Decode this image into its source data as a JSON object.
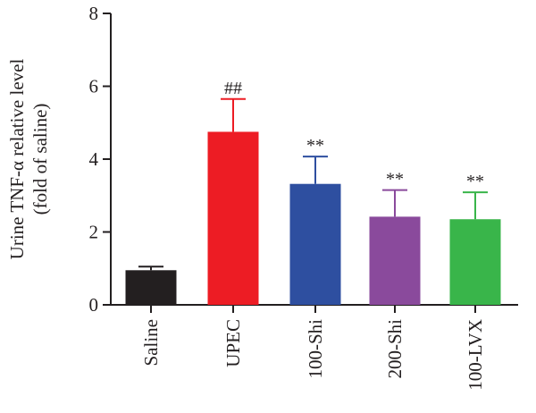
{
  "chart_data": {
    "type": "bar",
    "ylabel_line1": "Urine TNF-α relative level",
    "ylabel_line2": "(fold of saline)",
    "ylim": [
      0,
      8
    ],
    "yticks": [
      "0",
      "2",
      "4",
      "6",
      "8"
    ],
    "grid": false,
    "categories": [
      "Saline",
      "UPEC",
      "100-Shi",
      "200-Shi",
      "100-LVX"
    ],
    "values": [
      0.95,
      4.75,
      3.32,
      2.42,
      2.35
    ],
    "errors": [
      0.1,
      0.9,
      0.75,
      0.73,
      0.74
    ],
    "annotations": [
      "",
      "##",
      "**",
      "**",
      "**"
    ],
    "colors": [
      "#231f20",
      "#ed1c24",
      "#2e4fa0",
      "#8a4a9c",
      "#39b54a"
    ]
  }
}
